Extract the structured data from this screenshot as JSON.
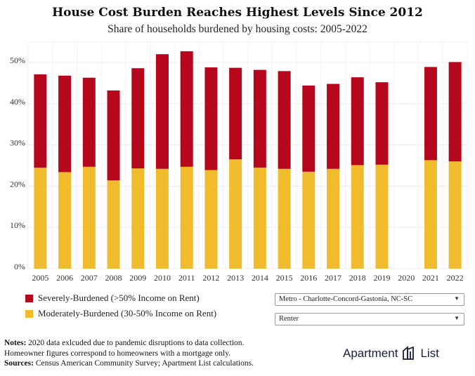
{
  "chart_data": {
    "type": "bar",
    "stacked": true,
    "title": "House Cost Burden Reaches Highest Levels Since 2012",
    "subtitle": "Share of households burdened by housing costs: 2005-2022",
    "categories": [
      "2005",
      "2006",
      "2007",
      "2008",
      "2009",
      "2010",
      "2011",
      "2012",
      "2013",
      "2014",
      "2015",
      "2016",
      "2017",
      "2018",
      "2019",
      "2020",
      "2021",
      "2022"
    ],
    "series": [
      {
        "name": "Moderately-Burdened (30-50% Income on Rent)",
        "color": "#f0bc2e",
        "values": [
          24.5,
          23.4,
          24.7,
          21.4,
          24.3,
          24.2,
          24.7,
          23.9,
          26.5,
          24.5,
          24.2,
          23.5,
          24.2,
          25.1,
          25.2,
          null,
          26.3,
          26.0
        ]
      },
      {
        "name": "Severely-Burdened (>50% Income on Rent)",
        "color": "#b5081d",
        "values": [
          22.6,
          23.4,
          21.6,
          21.8,
          24.3,
          27.8,
          28.0,
          24.9,
          22.2,
          23.7,
          23.7,
          20.9,
          20.6,
          21.3,
          20.0,
          null,
          22.6,
          24.1
        ]
      }
    ],
    "ylim": [
      0,
      55
    ],
    "yticks": [
      "0%",
      "10%",
      "20%",
      "30%",
      "40%",
      "50%"
    ],
    "ytick_values": [
      0,
      10,
      20,
      30,
      40,
      50
    ],
    "grid": true,
    "legend_position": "bottom-left"
  },
  "legend": {
    "severe": "Severely-Burdened (>50% Income on Rent)",
    "moderate": "Moderately-Burdened (30-50% Income on Rent)"
  },
  "controls": {
    "metro_value": "Metro - Charlotte-Concord-Gastonia, NC-SC",
    "tenure_value": "Renter"
  },
  "notes": {
    "notes_label": "Notes:",
    "notes_line1": "2020 data exlcuded due to pandemic disruptions to data collection.",
    "notes_line2": "Homeowner figures correspond to homeowners with a mortgage only.",
    "sources_label": "Sources:",
    "sources_text": "Census American Community Survey; Apartment List calculations."
  },
  "logo": {
    "word1": "Apartment",
    "word2": "List"
  },
  "colors": {
    "severe": "#b5081d",
    "moderate": "#f0bc2e"
  }
}
